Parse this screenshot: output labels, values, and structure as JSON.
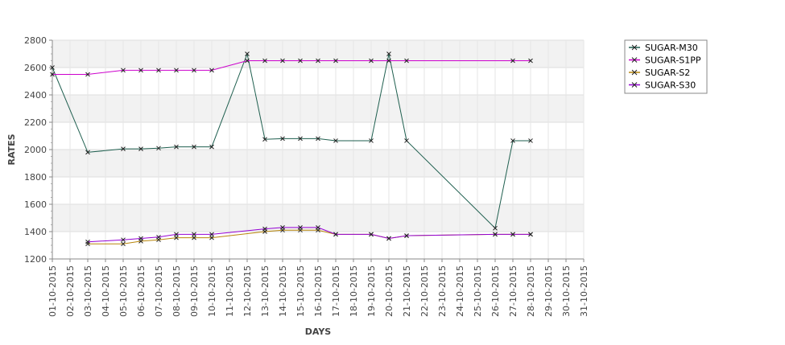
{
  "chart_data": {
    "type": "line",
    "xlabel": "DAYS",
    "ylabel": "RATES",
    "ylim": [
      1200,
      2800
    ],
    "yticks": [
      1200,
      1400,
      1600,
      1800,
      2000,
      2200,
      2400,
      2600,
      2800
    ],
    "grid": true,
    "legend_position": "top-right",
    "categories": [
      "01-10-2015",
      "02-10-2015",
      "03-10-2015",
      "04-10-2015",
      "05-10-2015",
      "06-10-2015",
      "07-10-2015",
      "08-10-2015",
      "09-10-2015",
      "10-10-2015",
      "11-10-2015",
      "12-10-2015",
      "13-10-2015",
      "14-10-2015",
      "15-10-2015",
      "16-10-2015",
      "17-10-2015",
      "18-10-2015",
      "19-10-2015",
      "20-10-2015",
      "21-10-2015",
      "22-10-2015",
      "23-10-2015",
      "24-10-2015",
      "25-10-2015",
      "26-10-2015",
      "27-10-2015",
      "28-10-2015",
      "29-10-2015",
      "30-10-2015",
      "31-10-2015"
    ],
    "series": [
      {
        "name": "SUGAR-M30",
        "color": "#1f5f4f",
        "values": [
          2600,
          null,
          1980,
          null,
          2005,
          2005,
          2010,
          2020,
          2020,
          2020,
          null,
          2700,
          2075,
          2080,
          2080,
          2080,
          2065,
          null,
          2065,
          2700,
          2065,
          null,
          null,
          null,
          null,
          1425,
          2065,
          2065,
          null,
          null,
          null
        ]
      },
      {
        "name": "SUGAR-S1PP",
        "color": "#cc00cc",
        "values": [
          2550,
          null,
          2550,
          null,
          2580,
          2580,
          2580,
          2580,
          2580,
          2580,
          null,
          2650,
          2650,
          2650,
          2650,
          2650,
          2650,
          null,
          2650,
          2650,
          2650,
          null,
          null,
          null,
          null,
          null,
          2650,
          2650,
          null,
          null,
          null
        ]
      },
      {
        "name": "SUGAR-S2",
        "color": "#b8860b",
        "values": [
          null,
          null,
          1310,
          null,
          1310,
          1330,
          1340,
          1355,
          1355,
          1355,
          null,
          null,
          1400,
          1410,
          1410,
          1410,
          1380,
          null,
          1380,
          1350,
          1370,
          null,
          null,
          null,
          null,
          1380,
          1380,
          1380,
          null,
          null,
          null
        ]
      },
      {
        "name": "SUGAR-S30",
        "color": "#9400d3",
        "values": [
          null,
          null,
          1325,
          null,
          1340,
          1350,
          1360,
          1380,
          1380,
          1380,
          null,
          null,
          1420,
          1430,
          1430,
          1430,
          1380,
          null,
          1380,
          1350,
          1370,
          null,
          null,
          null,
          null,
          1380,
          1380,
          1380,
          null,
          null,
          null
        ]
      }
    ]
  }
}
